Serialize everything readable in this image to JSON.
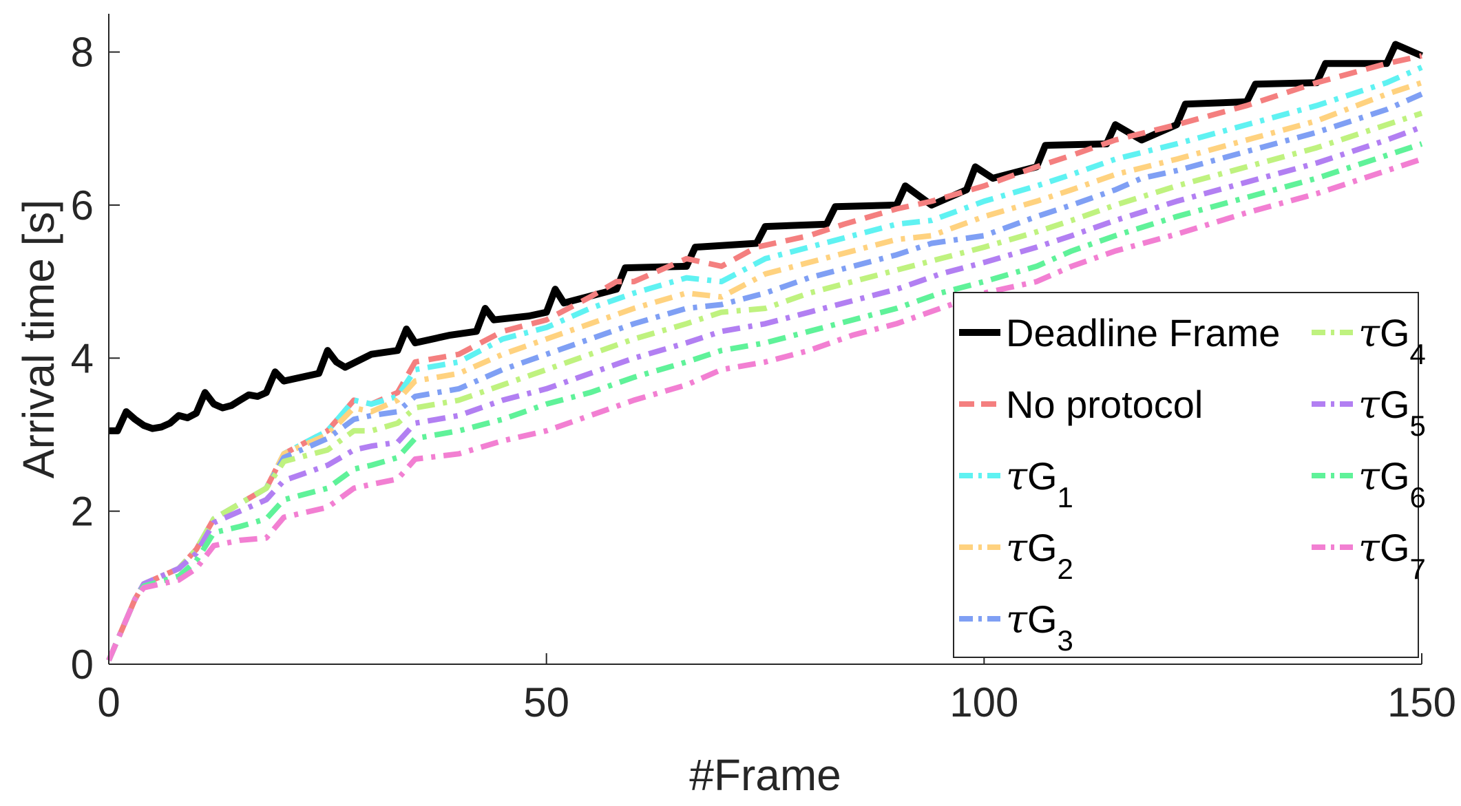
{
  "chart_data": {
    "type": "line",
    "title": "",
    "xlabel": "#Frame",
    "ylabel": "Arrival time [s]",
    "xlim": [
      0,
      150
    ],
    "ylim": [
      0,
      8.5
    ],
    "xticks": [
      0,
      50,
      100,
      150
    ],
    "xtick_labels": [
      "0",
      "50",
      "100",
      "150"
    ],
    "yticks": [
      0,
      2,
      4,
      6,
      8
    ],
    "ytick_labels": [
      "0",
      "2",
      "4",
      "6",
      "8"
    ],
    "grid": false,
    "legend_position": "bottom-right",
    "legend_columns": 2,
    "series": [
      {
        "name": "Deadline Frame",
        "style": "solid",
        "color": "#000000",
        "x": [
          0,
          1,
          2,
          3,
          4,
          5,
          6,
          7,
          8,
          9,
          10,
          11,
          12,
          13,
          14,
          15,
          16,
          17,
          18,
          19,
          20,
          24,
          25,
          26,
          27,
          30,
          33,
          34,
          35,
          39,
          42,
          43,
          44,
          48,
          50,
          51,
          52,
          58,
          59,
          66,
          67,
          74,
          75,
          82,
          83,
          90,
          91,
          94,
          98,
          99,
          101,
          106,
          107,
          114,
          115,
          118,
          122,
          123,
          130,
          131,
          138,
          139,
          146,
          147,
          150
        ],
        "values": [
          3.05,
          3.05,
          3.3,
          3.2,
          3.12,
          3.08,
          3.1,
          3.15,
          3.25,
          3.22,
          3.28,
          3.55,
          3.4,
          3.35,
          3.38,
          3.45,
          3.52,
          3.5,
          3.55,
          3.82,
          3.7,
          3.8,
          4.1,
          3.95,
          3.88,
          4.05,
          4.1,
          4.38,
          4.2,
          4.3,
          4.35,
          4.65,
          4.5,
          4.55,
          4.6,
          4.9,
          4.72,
          4.9,
          5.18,
          5.2,
          5.45,
          5.5,
          5.72,
          5.75,
          5.98,
          6.0,
          6.25,
          6.0,
          6.2,
          6.5,
          6.35,
          6.5,
          6.78,
          6.8,
          7.05,
          6.85,
          7.05,
          7.32,
          7.35,
          7.58,
          7.6,
          7.85,
          7.85,
          8.1,
          7.95
        ]
      },
      {
        "name": "No protocol",
        "style": "dashed",
        "color": "#f47f7f",
        "x": [
          0,
          3,
          4,
          8,
          10,
          12,
          15,
          18,
          20,
          25,
          28,
          30,
          33,
          35,
          40,
          45,
          50,
          55,
          58,
          60,
          66,
          70,
          74,
          80,
          84,
          90,
          94,
          100,
          106,
          110,
          115,
          122,
          130,
          138,
          146,
          150
        ],
        "values": [
          0.05,
          0.85,
          1.05,
          1.25,
          1.5,
          1.9,
          2.1,
          2.3,
          2.75,
          3.05,
          3.45,
          3.4,
          3.55,
          3.95,
          4.05,
          4.35,
          4.5,
          4.8,
          5.0,
          5.0,
          5.3,
          5.2,
          5.45,
          5.6,
          5.75,
          5.95,
          6.05,
          6.25,
          6.5,
          6.65,
          6.85,
          7.05,
          7.3,
          7.6,
          7.85,
          7.95
        ]
      },
      {
        "name": "τG_1",
        "style": "dash-dot",
        "color": "#5ff2f2",
        "x": [
          0,
          3,
          4,
          8,
          10,
          12,
          15,
          18,
          20,
          25,
          28,
          30,
          33,
          35,
          40,
          45,
          50,
          55,
          60,
          66,
          70,
          75,
          80,
          85,
          90,
          94,
          100,
          106,
          110,
          115,
          122,
          130,
          138,
          146,
          150
        ],
        "values": [
          0.05,
          0.85,
          1.05,
          1.25,
          1.5,
          1.9,
          2.1,
          2.3,
          2.75,
          3.05,
          3.45,
          3.4,
          3.5,
          3.85,
          3.95,
          4.25,
          4.4,
          4.65,
          4.85,
          5.05,
          5.0,
          5.3,
          5.45,
          5.6,
          5.75,
          5.8,
          6.05,
          6.25,
          6.4,
          6.6,
          6.8,
          7.05,
          7.3,
          7.6,
          7.8
        ]
      },
      {
        "name": "τG_2",
        "style": "dash-dot",
        "color": "#ffd27f",
        "x": [
          0,
          3,
          4,
          8,
          10,
          12,
          15,
          18,
          20,
          25,
          28,
          30,
          33,
          35,
          40,
          45,
          50,
          55,
          60,
          66,
          70,
          75,
          80,
          85,
          90,
          94,
          100,
          106,
          110,
          115,
          122,
          130,
          138,
          146,
          150
        ],
        "values": [
          0.05,
          0.85,
          1.05,
          1.25,
          1.5,
          1.9,
          2.1,
          2.3,
          2.75,
          3.0,
          3.35,
          3.3,
          3.45,
          3.7,
          3.8,
          4.05,
          4.25,
          4.45,
          4.65,
          4.85,
          4.8,
          5.1,
          5.25,
          5.4,
          5.55,
          5.6,
          5.85,
          6.05,
          6.2,
          6.4,
          6.6,
          6.85,
          7.1,
          7.45,
          7.6
        ]
      },
      {
        "name": "τG_3",
        "style": "dash-dot",
        "color": "#7f9ff4",
        "x": [
          0,
          3,
          4,
          8,
          10,
          12,
          15,
          18,
          20,
          25,
          28,
          30,
          33,
          35,
          40,
          45,
          50,
          55,
          60,
          66,
          70,
          75,
          80,
          85,
          90,
          94,
          100,
          106,
          110,
          115,
          118,
          122,
          130,
          138,
          146,
          150
        ],
        "values": [
          0.05,
          0.85,
          1.05,
          1.25,
          1.5,
          1.9,
          2.1,
          2.3,
          2.7,
          2.95,
          3.2,
          3.25,
          3.3,
          3.5,
          3.6,
          3.85,
          4.05,
          4.25,
          4.45,
          4.65,
          4.7,
          4.85,
          5.05,
          5.2,
          5.35,
          5.5,
          5.6,
          5.85,
          6.0,
          6.2,
          6.35,
          6.45,
          6.7,
          6.95,
          7.25,
          7.45
        ]
      },
      {
        "name": "τG_4",
        "style": "dash-dot",
        "color": "#bff27f",
        "x": [
          0,
          3,
          4,
          8,
          10,
          12,
          15,
          18,
          20,
          25,
          28,
          30,
          33,
          35,
          40,
          45,
          50,
          55,
          60,
          66,
          70,
          75,
          80,
          85,
          90,
          95,
          100,
          106,
          110,
          115,
          122,
          130,
          138,
          146,
          150
        ],
        "values": [
          0.05,
          0.85,
          1.05,
          1.25,
          1.5,
          1.9,
          2.1,
          2.3,
          2.65,
          2.8,
          3.05,
          3.05,
          3.15,
          3.35,
          3.45,
          3.65,
          3.85,
          4.05,
          4.25,
          4.45,
          4.6,
          4.65,
          4.85,
          5.0,
          5.15,
          5.3,
          5.45,
          5.65,
          5.8,
          6.0,
          6.25,
          6.5,
          6.75,
          7.05,
          7.2
        ]
      },
      {
        "name": "τG_5",
        "style": "dash-dot",
        "color": "#b27ff2",
        "x": [
          0,
          3,
          4,
          8,
          10,
          12,
          15,
          18,
          20,
          25,
          28,
          30,
          33,
          35,
          40,
          45,
          50,
          55,
          60,
          66,
          70,
          75,
          80,
          85,
          90,
          95,
          100,
          106,
          110,
          115,
          122,
          130,
          138,
          146,
          150
        ],
        "values": [
          0.05,
          0.85,
          1.05,
          1.25,
          1.45,
          1.85,
          2.0,
          2.15,
          2.4,
          2.6,
          2.8,
          2.85,
          2.9,
          3.15,
          3.25,
          3.45,
          3.6,
          3.8,
          4.0,
          4.2,
          4.35,
          4.45,
          4.6,
          4.75,
          4.9,
          5.1,
          5.25,
          5.45,
          5.6,
          5.8,
          6.05,
          6.3,
          6.55,
          6.85,
          7.02
        ]
      },
      {
        "name": "τG_6",
        "style": "dash-dot",
        "color": "#5ff299",
        "x": [
          0,
          3,
          4,
          8,
          10,
          12,
          15,
          18,
          20,
          25,
          28,
          30,
          33,
          35,
          40,
          45,
          50,
          55,
          60,
          66,
          70,
          75,
          80,
          85,
          90,
          95,
          100,
          106,
          110,
          115,
          122,
          130,
          138,
          146,
          150
        ],
        "values": [
          0.05,
          0.85,
          1.02,
          1.15,
          1.35,
          1.72,
          1.8,
          1.9,
          2.15,
          2.3,
          2.55,
          2.6,
          2.7,
          2.95,
          3.05,
          3.2,
          3.4,
          3.55,
          3.75,
          3.95,
          4.1,
          4.2,
          4.35,
          4.5,
          4.65,
          4.85,
          5.0,
          5.2,
          5.4,
          5.6,
          5.85,
          6.1,
          6.35,
          6.65,
          6.8
        ]
      },
      {
        "name": "τG_7",
        "style": "dash-dot",
        "color": "#f27fd2",
        "x": [
          0,
          3,
          4,
          8,
          10,
          12,
          15,
          18,
          20,
          25,
          28,
          30,
          33,
          35,
          40,
          45,
          50,
          55,
          60,
          66,
          70,
          75,
          80,
          85,
          90,
          95,
          100,
          106,
          110,
          115,
          122,
          130,
          138,
          146,
          150
        ],
        "values": [
          0.05,
          0.85,
          1.0,
          1.1,
          1.25,
          1.55,
          1.62,
          1.65,
          1.92,
          2.05,
          2.3,
          2.35,
          2.42,
          2.68,
          2.75,
          2.92,
          3.05,
          3.25,
          3.45,
          3.65,
          3.85,
          3.95,
          4.1,
          4.3,
          4.45,
          4.65,
          4.85,
          5.0,
          5.2,
          5.4,
          5.62,
          5.9,
          6.15,
          6.45,
          6.6
        ]
      }
    ]
  }
}
